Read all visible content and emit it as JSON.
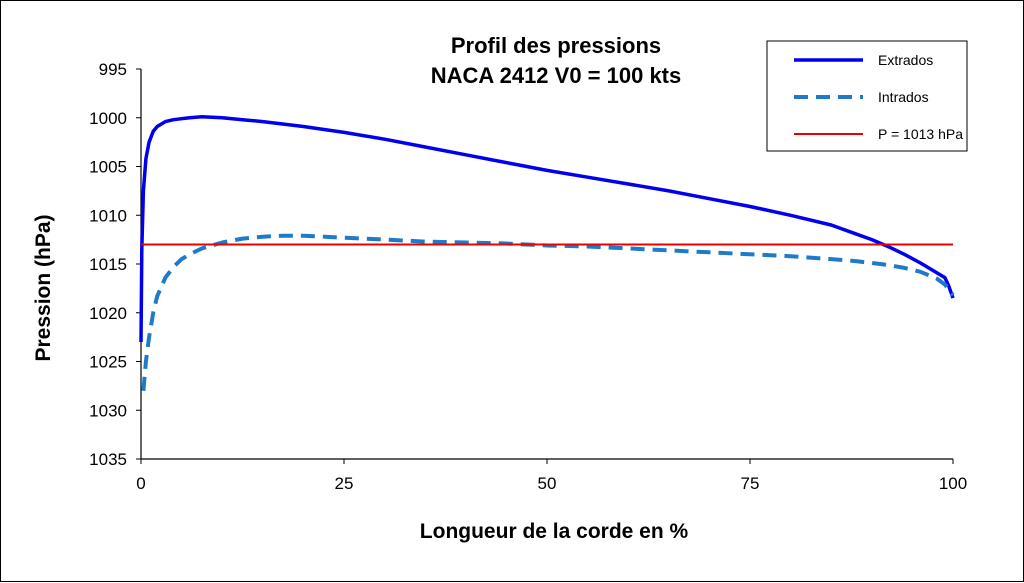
{
  "chart_data": {
    "type": "line",
    "title": [
      "Profil des pressions",
      "NACA 2412   V0 = 100 kts"
    ],
    "xlabel": "Longueur de la corde en %",
    "ylabel": "Pression (hPa)",
    "xlim": [
      0,
      100
    ],
    "ylim": [
      995,
      1035
    ],
    "y_inverted": true,
    "x_ticks": [
      "0",
      "25",
      "50",
      "75",
      "100"
    ],
    "y_ticks": [
      "995",
      "1000",
      "1005",
      "1010",
      "1015",
      "1020",
      "1025",
      "1030",
      "1035"
    ],
    "grid": false,
    "legend_position": "top-right",
    "series": [
      {
        "name": "Extrados",
        "color": "#0000ee",
        "style": "solid",
        "x": [
          0,
          0.1,
          0.3,
          0.6,
          1,
          1.5,
          2,
          3,
          4,
          5,
          6,
          7.5,
          10,
          12.5,
          15,
          20,
          25,
          30,
          35,
          40,
          45,
          50,
          55,
          60,
          65,
          70,
          75,
          80,
          85,
          88,
          90,
          92,
          94,
          96,
          98,
          99,
          99.5,
          100
        ],
        "values": [
          1023,
          1013.5,
          1007.5,
          1004.2,
          1002.5,
          1001.4,
          1000.9,
          1000.4,
          1000.2,
          1000.1,
          1000.0,
          999.9,
          1000.0,
          1000.2,
          1000.4,
          1000.9,
          1001.5,
          1002.2,
          1003.0,
          1003.8,
          1004.6,
          1005.4,
          1006.1,
          1006.8,
          1007.5,
          1008.3,
          1009.1,
          1010.0,
          1011.0,
          1011.9,
          1012.5,
          1013.2,
          1014.0,
          1014.9,
          1015.9,
          1016.4,
          1017.3,
          1018.5
        ]
      },
      {
        "name": "Intrados",
        "color": "#1f7ac9",
        "style": "dashed",
        "x": [
          0.3,
          0.6,
          1,
          1.5,
          2,
          3,
          4,
          5,
          6,
          7.5,
          10,
          12.5,
          15,
          17.5,
          20,
          25,
          30,
          35,
          40,
          45,
          50,
          55,
          60,
          65,
          70,
          75,
          80,
          85,
          88,
          90,
          92,
          94,
          96,
          98,
          99,
          100
        ],
        "values": [
          1028,
          1025,
          1022.5,
          1020,
          1018.3,
          1016.4,
          1015.3,
          1014.5,
          1014.0,
          1013.4,
          1012.8,
          1012.4,
          1012.2,
          1012.1,
          1012.1,
          1012.3,
          1012.5,
          1012.7,
          1012.8,
          1012.9,
          1013.1,
          1013.2,
          1013.4,
          1013.6,
          1013.8,
          1014.0,
          1014.2,
          1014.5,
          1014.7,
          1014.9,
          1015.1,
          1015.4,
          1015.8,
          1016.5,
          1017.1,
          1018.2
        ]
      },
      {
        "name": "P = 1013 hPa",
        "color": "#ee0000",
        "style": "solid",
        "x": [
          0,
          100
        ],
        "values": [
          1013,
          1013
        ]
      }
    ]
  }
}
